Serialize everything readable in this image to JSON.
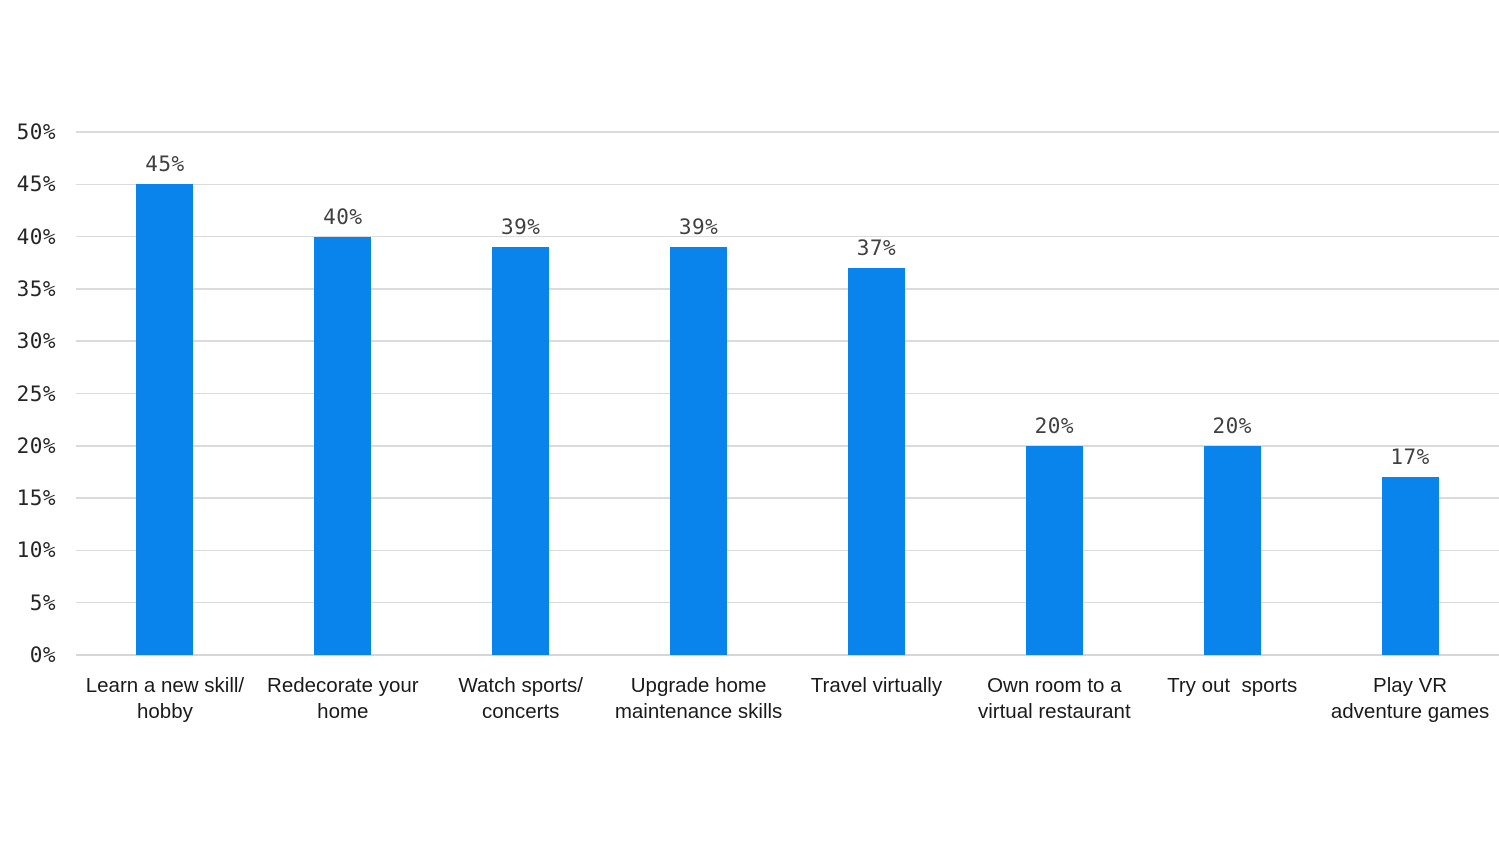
{
  "chart_data": {
    "type": "bar",
    "title": "",
    "xlabel": "",
    "ylabel": "",
    "categories": [
      "Learn a new skill/\nhobby",
      "Redecorate your\nhome",
      "Watch sports/\nconcerts",
      "Upgrade home\nmaintenance skills",
      "Travel virtually",
      "Own room to a\nvirtual restaurant",
      "Try out  sports",
      "Play VR\nadventure games"
    ],
    "values": [
      45,
      40,
      39,
      39,
      37,
      20,
      20,
      17
    ],
    "data_labels": [
      "45%",
      "40%",
      "39%",
      "39%",
      "37%",
      "20%",
      "20%",
      "17%"
    ],
    "ylim": [
      0,
      50
    ],
    "yticks": [
      0,
      5,
      10,
      15,
      20,
      25,
      30,
      35,
      40,
      45,
      50
    ],
    "ytick_labels": [
      "0%",
      "5%",
      "10%",
      "15%",
      "20%",
      "25%",
      "30%",
      "35%",
      "40%",
      "45%",
      "50%"
    ],
    "grid": true,
    "legend": false
  },
  "colors": {
    "bar": "#0884ec",
    "gridline": "#dbdbdb",
    "tick_text": "#252525",
    "value_text": "#404040",
    "category_text": "#1a1a1a",
    "background": "#ffffff"
  }
}
